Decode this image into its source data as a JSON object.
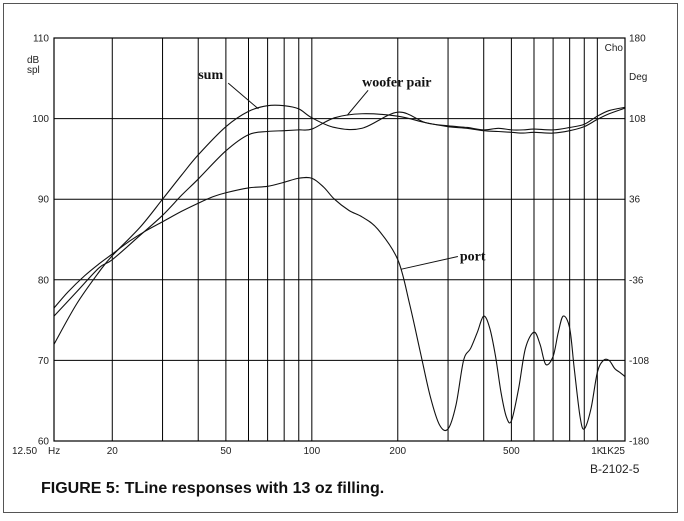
{
  "caption": "FIGURE 5: TLine responses with 13 oz filling.",
  "ref_id": "B-2102-5",
  "chart_data": {
    "type": "line",
    "title": "",
    "x_scale": "log",
    "xlim": [
      12.5,
      1250
    ],
    "ylim": [
      60,
      110
    ],
    "y2lim": [
      -180,
      180
    ],
    "grid": true,
    "legend": "none",
    "left_unit_label": [
      "dB",
      "spl"
    ],
    "right_unit_labels": [
      "Cho",
      "Deg"
    ],
    "x_major_gridlines": [
      20,
      30,
      40,
      50,
      60,
      70,
      80,
      90,
      100,
      200,
      300,
      400,
      500,
      600,
      700,
      800,
      900,
      1000
    ],
    "x_tick_labels": [
      {
        "x": 12.5,
        "label": "12.50"
      },
      {
        "x": 20,
        "label": "20"
      },
      {
        "x": 50,
        "label": "50"
      },
      {
        "x": 100,
        "label": "100"
      },
      {
        "x": 200,
        "label": "200"
      },
      {
        "x": 500,
        "label": "500"
      },
      {
        "x": 1000,
        "label": "1K"
      },
      {
        "x": 1250,
        "label": "1K25"
      }
    ],
    "x_unit_label": "Hz",
    "y_ticks": [
      60,
      70,
      80,
      90,
      100,
      110
    ],
    "y2_ticks": [
      -180,
      -108,
      -36,
      36,
      108,
      180
    ],
    "series": [
      {
        "id": "sum",
        "x": [
          12.5,
          15,
          18,
          20,
          25,
          30,
          35,
          40,
          50,
          60,
          70,
          80,
          90,
          100,
          120,
          150,
          200,
          250,
          300,
          350,
          400,
          450,
          500,
          550,
          600,
          700,
          800,
          900,
          1000,
          1100,
          1250
        ],
        "values": [
          72,
          77,
          81,
          83,
          86.5,
          90,
          93,
          95.5,
          99,
          100.9,
          101.6,
          101.6,
          101.2,
          100.1,
          98.9,
          98.8,
          100.8,
          99.5,
          99.1,
          98.9,
          98.6,
          98.8,
          98.6,
          98.6,
          98.7,
          98.6,
          98.9,
          99.3,
          100.3,
          101.0,
          101.4
        ]
      },
      {
        "id": "woofer pair",
        "x": [
          12.5,
          15,
          18,
          20,
          25,
          30,
          35,
          40,
          50,
          60,
          70,
          80,
          90,
          100,
          120,
          150,
          200,
          250,
          300,
          350,
          400,
          450,
          500,
          550,
          600,
          700,
          800,
          900,
          1000,
          1100,
          1250
        ],
        "values": [
          75.5,
          78.5,
          81.5,
          82.5,
          85.5,
          88,
          90.5,
          92.5,
          96,
          98,
          98.4,
          98.5,
          98.6,
          98.7,
          100.1,
          100.6,
          100.3,
          99.5,
          99,
          98.8,
          98.5,
          98.4,
          98.3,
          98.2,
          98.3,
          98.2,
          98.5,
          99.0,
          99.9,
          100.6,
          101.3
        ]
      },
      {
        "id": "port",
        "x": [
          12.5,
          14,
          16,
          18,
          20,
          23,
          26,
          30,
          35,
          40,
          45,
          50,
          60,
          70,
          80,
          90,
          100,
          110,
          120,
          135,
          150,
          170,
          200,
          220,
          240,
          260,
          280,
          300,
          320,
          340,
          360,
          380,
          400,
          420,
          440,
          460,
          480,
          500,
          530,
          560,
          600,
          630,
          660,
          700,
          730,
          760,
          800,
          830,
          870,
          900,
          950,
          1000,
          1050,
          1100,
          1150,
          1200,
          1250
        ],
        "values": [
          76.5,
          78.5,
          80.5,
          82,
          83.2,
          84.8,
          86,
          87.2,
          88.5,
          89.5,
          90.3,
          90.8,
          91.4,
          91.6,
          92.1,
          92.6,
          92.6,
          91.5,
          90,
          88.6,
          87.8,
          86.3,
          82.5,
          77,
          71,
          65.5,
          62,
          61.5,
          64.5,
          70,
          71.5,
          73.5,
          75.5,
          74,
          70.5,
          66,
          63,
          62.5,
          66.5,
          71.5,
          73.5,
          72,
          69.5,
          70.5,
          73.5,
          75.5,
          74,
          69,
          63,
          61.5,
          64,
          68.5,
          70,
          70,
          69,
          68.5,
          68
        ]
      }
    ],
    "annotations": [
      {
        "text": "sum",
        "target_series": "sum",
        "text_at": [
          40,
          104.9
        ],
        "arrow_to": [
          65,
          101.2
        ]
      },
      {
        "text": "woofer pair",
        "target_series": "woofer pair",
        "text_at": [
          150,
          104
        ],
        "arrow_to": [
          133,
          100.4
        ]
      },
      {
        "text": "port",
        "target_series": "port",
        "text_at": [
          330,
          82.4
        ],
        "arrow_to": [
          205,
          81.3
        ]
      }
    ]
  }
}
